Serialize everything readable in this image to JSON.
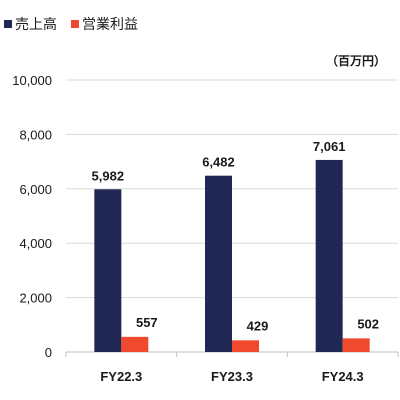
{
  "unit_label": "（百万円）",
  "colors": {
    "revenue": "#1f2752",
    "operating_profit": "#f04a2e",
    "gridline": "#d9d9d9",
    "axis": "#bfbfbf"
  },
  "chart_data": {
    "type": "bar",
    "categories": [
      "FY22.3",
      "FY23.3",
      "FY24.3"
    ],
    "series": [
      {
        "name": "売上高",
        "values": [
          5982,
          6482,
          7061
        ]
      },
      {
        "name": "営業利益",
        "values": [
          557,
          429,
          502
        ]
      }
    ],
    "data_labels": [
      [
        "5,982",
        "6,482",
        "7,061"
      ],
      [
        "557",
        "429",
        "502"
      ]
    ],
    "ylim": [
      0,
      10000
    ],
    "yticks": [
      0,
      2000,
      4000,
      6000,
      8000,
      10000
    ],
    "ytick_labels": [
      "0",
      "2,000",
      "4,000",
      "6,000",
      "8,000",
      "10,000"
    ],
    "legend_position": "top-left",
    "grid": true
  }
}
